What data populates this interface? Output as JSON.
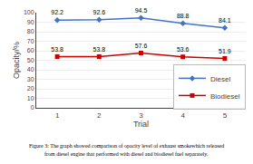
{
  "chart_data": {
    "type": "line",
    "x": [
      1,
      2,
      3,
      4,
      5
    ],
    "series": [
      {
        "name": "Diesel",
        "color": "#4472C4",
        "marker": "diamond",
        "values": [
          92.2,
          92.6,
          94.5,
          88.8,
          84.1
        ]
      },
      {
        "name": "Biodiesel",
        "color": "#CC0000",
        "marker": "square",
        "values": [
          53.8,
          53.8,
          57.6,
          53.6,
          51.9
        ]
      }
    ],
    "xlabel": "Trial",
    "ylabel": "Opacity/%",
    "xlim": [
      0.5,
      5.5
    ],
    "xticks": [
      1,
      2,
      3,
      4,
      5
    ],
    "ylim": [
      0,
      100
    ],
    "yticks": [
      0,
      10,
      20,
      30,
      40,
      50,
      60,
      70,
      80,
      90,
      100
    ],
    "grid": true,
    "legend": "right",
    "data_labels": true,
    "annotations": [
      "Figure 3: The graph showed comparison of opacity level of exhaust smokewhich released",
      "from diesel engine that performed with diesel and biodiesel fuel separately."
    ]
  }
}
